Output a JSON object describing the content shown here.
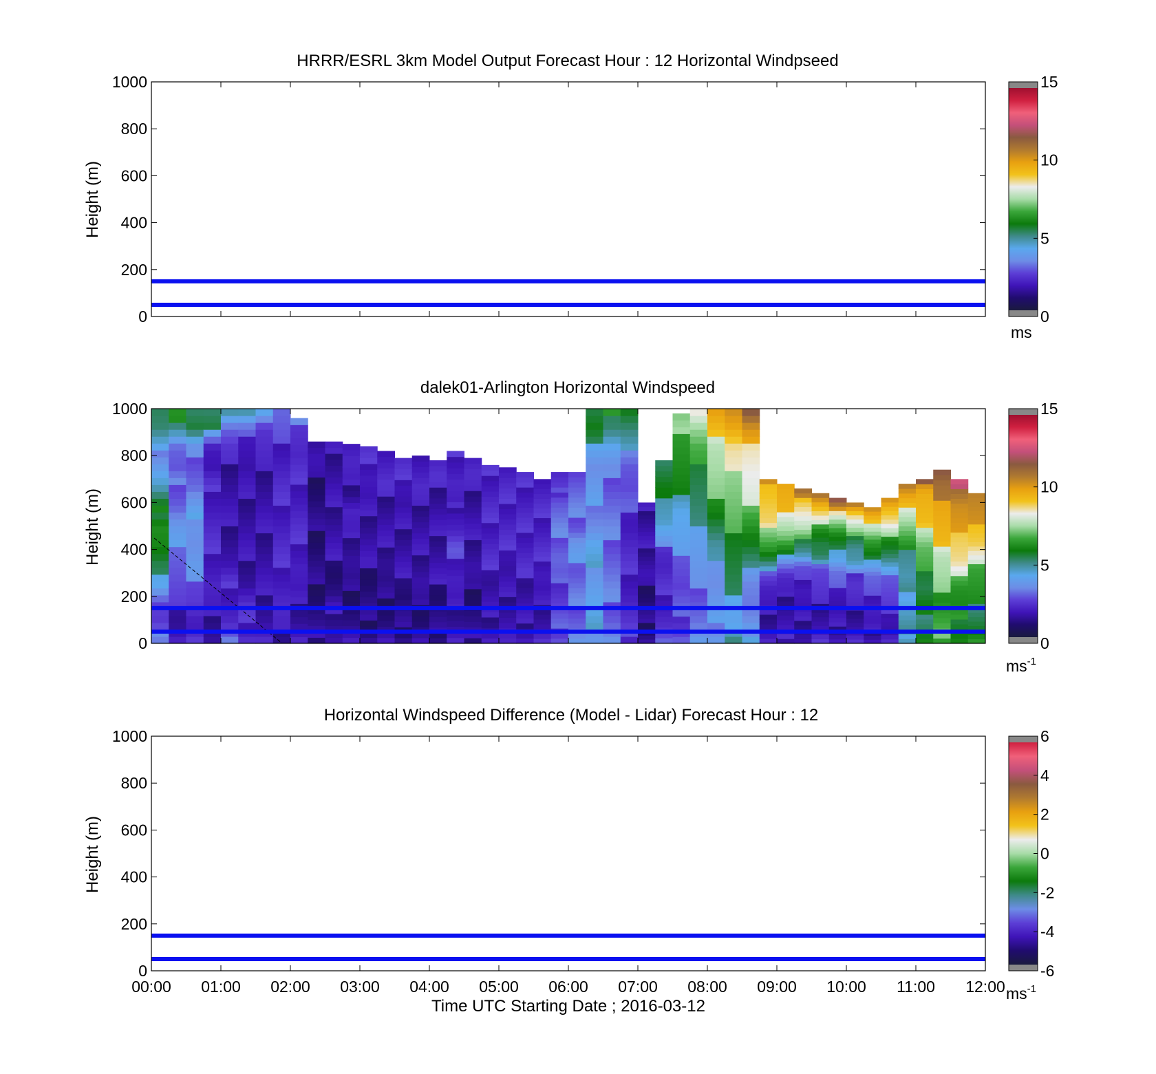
{
  "colors": {
    "guide_line": "#0a10f0",
    "axis": "#000000",
    "missing": "#888888",
    "speed_colormap": [
      "#1a1a3e",
      "#200c6e",
      "#3f14b8",
      "#5c3ed6",
      "#6d8de6",
      "#5aa8ee",
      "#3f8a8a",
      "#0c7a0c",
      "#3aa63a",
      "#a8dca8",
      "#ececec",
      "#f2c21a",
      "#e8a010",
      "#b07a30",
      "#8a5a40",
      "#c4507a",
      "#f0607a",
      "#d02040",
      "#a01030"
    ],
    "diff_colormap": [
      "#1a1a3e",
      "#200c6e",
      "#3f14b8",
      "#5c3ed6",
      "#6d8de6",
      "#3f8a8a",
      "#0c7a0c",
      "#3aa63a",
      "#a8dca8",
      "#ececec",
      "#f2c21a",
      "#e8a010",
      "#b07a30",
      "#8a5a40",
      "#c4507a",
      "#f0607a",
      "#d02040"
    ]
  },
  "chart_data": [
    {
      "type": "line",
      "title": "HRRR/ESRL 3km Model Output   Forecast Hour : 12 Horizontal Windpseed",
      "ylabel": "Height (m)",
      "ylim": [
        0,
        1000
      ],
      "yticks": [
        "0",
        "200",
        "400",
        "600",
        "800",
        "1000"
      ],
      "xlim": [
        "00:00",
        "12:00"
      ],
      "x_tick_count": 13,
      "series": [
        {
          "values": [
            150,
            150
          ]
        },
        {
          "values": [
            50,
            50
          ]
        }
      ],
      "colorbar": {
        "ticks": [
          "0",
          "5",
          "10",
          "15"
        ],
        "range": [
          0,
          15
        ],
        "unit": "ms",
        "unit_sup": ""
      }
    },
    {
      "type": "heatmap",
      "title": "dalek01-Arlington  Horizontal Windspeed",
      "ylabel": "Height (m)",
      "ylim": [
        0,
        1000
      ],
      "yticks": [
        "0",
        "200",
        "400",
        "600",
        "800",
        "1000"
      ],
      "xlim": [
        "00:00",
        "12:00"
      ],
      "x_tick_count": 13,
      "guide_lines_m": [
        150,
        50
      ],
      "colorbar": {
        "ticks": [
          "0",
          "5",
          "10",
          "15"
        ],
        "range": [
          0,
          15
        ],
        "unit": "ms",
        "unit_sup": "-1"
      },
      "columns": [
        {
          "t": "00:10",
          "top_m": 1000,
          "speeds": [
            4.0,
            2.0,
            2.5,
            4.5,
            5.0,
            6.0,
            6.5,
            5.5,
            4.5,
            4.0,
            3.5,
            5.0,
            5.5
          ]
        },
        {
          "t": "00:25",
          "top_m": 1000,
          "speeds": [
            2.0,
            1.5,
            2.0,
            2.5,
            3.0,
            3.5,
            3.5,
            3.0,
            3.0,
            2.5,
            3.0,
            5.5,
            6.0
          ]
        },
        {
          "t": "00:40",
          "top_m": 1000,
          "speeds": [
            2.0,
            1.5,
            2.5,
            3.0,
            3.5,
            3.5,
            4.0,
            3.5,
            3.0,
            3.0,
            3.0,
            5.5,
            5.5
          ]
        },
        {
          "t": "00:55",
          "top_m": 1000,
          "speeds": [
            1.5,
            1.5,
            1.5,
            2.0,
            2.0,
            2.0,
            2.0,
            2.0,
            2.0,
            1.5,
            2.0,
            5.0,
            5.0
          ]
        },
        {
          "t": "01:10",
          "top_m": 1000,
          "speeds": [
            3.0,
            2.0,
            2.0,
            2.0,
            1.5,
            1.5,
            1.5,
            1.5,
            1.5,
            1.5,
            2.0,
            3.0,
            5.5
          ]
        },
        {
          "t": "01:25",
          "top_m": 1000,
          "speeds": [
            2.5,
            2.0,
            2.0,
            1.5,
            1.5,
            1.5,
            1.5,
            1.5,
            1.5,
            1.5,
            2.0,
            2.5,
            5.0
          ]
        },
        {
          "t": "01:40",
          "top_m": 1000,
          "speeds": [
            2.0,
            1.5,
            1.5,
            1.5,
            1.5,
            1.5,
            1.5,
            1.5,
            1.5,
            1.5,
            2.0,
            2.5,
            5.0
          ]
        },
        {
          "t": "01:55",
          "top_m": 1000,
          "speeds": [
            1.5,
            1.5,
            2.0,
            2.0,
            2.0,
            2.0,
            2.0,
            2.0,
            2.0,
            2.0,
            2.0,
            2.5,
            3.0
          ]
        },
        {
          "t": "02:10",
          "top_m": 960,
          "speeds": [
            2.0,
            1.5,
            1.5,
            1.5,
            2.0,
            2.0,
            2.0,
            2.0,
            2.0,
            2.0,
            2.0,
            2.5,
            3.0
          ]
        },
        {
          "t": "02:25",
          "top_m": 860,
          "speeds": [
            1.5,
            1.0,
            1.0,
            1.0,
            1.0,
            1.0,
            1.0,
            1.0,
            1.0,
            1.0,
            1.0,
            1.5,
            1.5
          ]
        },
        {
          "t": "02:40",
          "top_m": 860,
          "speeds": [
            1.5,
            1.5,
            1.5,
            1.0,
            1.0,
            1.5,
            1.5,
            1.5,
            1.5,
            1.5,
            1.5,
            1.5,
            1.5
          ]
        },
        {
          "t": "02:55",
          "top_m": 850,
          "speeds": [
            1.5,
            1.0,
            1.0,
            1.0,
            1.0,
            1.5,
            1.5,
            1.5,
            2.0,
            1.5,
            1.5,
            2.0,
            2.0
          ]
        },
        {
          "t": "03:10",
          "top_m": 840,
          "speeds": [
            1.5,
            1.0,
            1.0,
            1.0,
            1.0,
            1.5,
            1.5,
            1.5,
            1.5,
            1.5,
            2.0,
            2.0,
            2.0
          ]
        },
        {
          "t": "03:25",
          "top_m": 820,
          "speeds": [
            1.5,
            1.0,
            1.0,
            1.0,
            1.0,
            1.5,
            1.5,
            1.5,
            1.5,
            1.5,
            2.0,
            2.0,
            2.0
          ]
        },
        {
          "t": "03:40",
          "top_m": 790,
          "speeds": [
            1.5,
            1.0,
            1.0,
            1.0,
            1.5,
            1.5,
            1.5,
            1.5,
            1.5,
            1.5,
            2.0,
            2.0,
            2.0
          ]
        },
        {
          "t": "03:55",
          "top_m": 800,
          "speeds": [
            1.5,
            1.0,
            1.0,
            1.0,
            1.5,
            1.5,
            1.5,
            1.5,
            1.5,
            1.5,
            2.0,
            2.0,
            2.0
          ]
        },
        {
          "t": "04:10",
          "top_m": 780,
          "speeds": [
            1.5,
            1.0,
            1.0,
            1.0,
            1.5,
            1.5,
            1.5,
            1.5,
            1.5,
            1.5,
            1.5,
            2.0,
            2.0
          ]
        },
        {
          "t": "04:25",
          "top_m": 820,
          "speeds": [
            2.0,
            1.5,
            1.5,
            1.5,
            2.0,
            2.0,
            2.5,
            2.0,
            2.0,
            1.5,
            2.0,
            2.0,
            2.0
          ]
        },
        {
          "t": "04:40",
          "top_m": 790,
          "speeds": [
            1.5,
            1.0,
            1.0,
            1.0,
            1.0,
            1.5,
            1.5,
            1.5,
            1.5,
            1.5,
            1.5,
            2.0,
            2.0
          ]
        },
        {
          "t": "04:55",
          "top_m": 760,
          "speeds": [
            2.0,
            1.5,
            1.5,
            1.5,
            1.5,
            2.0,
            2.0,
            2.0,
            2.0,
            2.0,
            2.0,
            2.0,
            2.0
          ]
        },
        {
          "t": "05:10",
          "top_m": 750,
          "speeds": [
            1.5,
            1.5,
            1.5,
            1.5,
            1.5,
            1.5,
            2.0,
            2.0,
            2.0,
            2.0,
            2.0,
            2.0,
            2.0
          ]
        },
        {
          "t": "05:25",
          "top_m": 730,
          "speeds": [
            2.0,
            1.5,
            1.5,
            1.5,
            1.5,
            2.0,
            2.0,
            2.0,
            2.0,
            2.0,
            2.0,
            2.0,
            2.0
          ]
        },
        {
          "t": "05:40",
          "top_m": 700,
          "speeds": [
            2.0,
            1.5,
            1.5,
            1.5,
            1.5,
            2.0,
            2.0,
            2.0,
            2.0,
            2.0,
            2.0,
            2.0,
            2.0
          ]
        },
        {
          "t": "05:55",
          "top_m": 730,
          "speeds": [
            3.0,
            2.5,
            2.5,
            2.5,
            2.5,
            2.5,
            3.0,
            3.0,
            3.0,
            3.0,
            3.0,
            2.0,
            2.0
          ]
        },
        {
          "t": "06:10",
          "top_m": 730,
          "speeds": [
            3.5,
            3.0,
            3.0,
            3.0,
            3.0,
            3.0,
            3.5,
            3.5,
            3.0,
            3.0,
            3.0,
            3.0,
            3.0
          ]
        },
        {
          "t": "06:25",
          "top_m": 1000,
          "speeds": [
            4.0,
            4.0,
            4.0,
            4.0,
            4.0,
            4.0,
            3.5,
            3.5,
            3.5,
            3.5,
            4.5,
            5.5,
            5.5
          ]
        },
        {
          "t": "06:40",
          "top_m": 1000,
          "speeds": [
            3.5,
            3.0,
            3.0,
            3.0,
            3.0,
            3.0,
            3.0,
            3.0,
            3.0,
            3.0,
            4.0,
            5.5,
            6.0
          ]
        },
        {
          "t": "06:55",
          "top_m": 1000,
          "speeds": [
            2.5,
            2.0,
            2.0,
            2.0,
            2.0,
            2.0,
            2.0,
            2.5,
            2.5,
            3.0,
            4.0,
            5.0,
            6.0
          ]
        },
        {
          "t": "07:10",
          "top_m": 600,
          "speeds": [
            1.5,
            1.0,
            1.0,
            1.0,
            1.0,
            1.0,
            1.5,
            1.5,
            1.5,
            1.5,
            1.5,
            1.5,
            1.5
          ]
        },
        {
          "t": "07:25",
          "top_m": 780,
          "speeds": [
            2.5,
            2.0,
            2.0,
            2.0,
            2.0,
            2.0,
            2.5,
            3.5,
            4.5,
            5.0,
            5.5,
            5.5,
            5.5
          ]
        },
        {
          "t": "07:40",
          "top_m": 980,
          "speeds": [
            3.0,
            2.5,
            2.5,
            2.5,
            3.0,
            3.5,
            4.0,
            4.5,
            5.5,
            6.0,
            6.5,
            7.0,
            7.0
          ]
        },
        {
          "t": "07:55",
          "top_m": 1000,
          "speeds": [
            3.5,
            3.0,
            3.0,
            3.0,
            3.5,
            4.0,
            4.5,
            5.0,
            5.5,
            6.0,
            6.5,
            7.5,
            9.0
          ]
        },
        {
          "t": "08:10",
          "top_m": 1000,
          "speeds": [
            4.0,
            3.5,
            3.5,
            3.5,
            4.0,
            4.5,
            5.5,
            6.5,
            7.0,
            7.5,
            8.0,
            9.0,
            10.0
          ]
        },
        {
          "t": "08:25",
          "top_m": 1000,
          "speeds": [
            5.0,
            4.0,
            4.5,
            5.0,
            5.5,
            6.0,
            6.5,
            7.0,
            7.5,
            8.0,
            8.5,
            10.0,
            11.0
          ]
        },
        {
          "t": "08:40",
          "top_m": 1000,
          "speeds": [
            5.0,
            3.0,
            3.0,
            3.5,
            4.5,
            5.5,
            6.5,
            7.5,
            8.0,
            8.5,
            9.0,
            10.0,
            12.0
          ]
        },
        {
          "t": "08:55",
          "top_m": 700,
          "speeds": [
            2.0,
            1.5,
            1.5,
            1.5,
            2.0,
            3.0,
            5.0,
            6.5,
            7.5,
            8.5,
            9.0,
            9.5,
            10.0
          ]
        },
        {
          "t": "09:10",
          "top_m": 680,
          "speeds": [
            2.0,
            1.5,
            1.5,
            1.5,
            1.5,
            2.0,
            3.5,
            5.5,
            7.0,
            8.0,
            9.0,
            9.5,
            10.0
          ]
        },
        {
          "t": "09:25",
          "top_m": 660,
          "speeds": [
            1.5,
            1.5,
            1.5,
            1.5,
            2.0,
            2.0,
            2.5,
            5.0,
            6.0,
            7.5,
            8.5,
            9.5,
            11.0
          ]
        },
        {
          "t": "09:40",
          "top_m": 640,
          "speeds": [
            2.0,
            1.5,
            1.5,
            1.5,
            2.0,
            2.5,
            3.0,
            5.0,
            5.5,
            6.5,
            8.0,
            9.5,
            11.5
          ]
        },
        {
          "t": "09:55",
          "top_m": 620,
          "speeds": [
            2.0,
            1.5,
            1.5,
            1.5,
            2.0,
            2.5,
            3.0,
            4.5,
            5.0,
            6.0,
            7.5,
            9.5,
            12.0
          ]
        },
        {
          "t": "10:10",
          "top_m": 600,
          "speeds": [
            2.0,
            1.5,
            1.5,
            1.5,
            2.0,
            2.5,
            2.5,
            4.5,
            5.0,
            6.0,
            7.5,
            9.0,
            11.5
          ]
        },
        {
          "t": "10:25",
          "top_m": 580,
          "speeds": [
            2.0,
            1.5,
            1.5,
            2.0,
            2.0,
            2.5,
            3.0,
            4.5,
            5.5,
            6.5,
            8.0,
            9.0,
            10.5
          ]
        },
        {
          "t": "10:40",
          "top_m": 620,
          "speeds": [
            2.0,
            1.5,
            2.0,
            2.0,
            2.5,
            3.0,
            3.5,
            5.0,
            6.0,
            7.0,
            8.5,
            9.5,
            11.0
          ]
        },
        {
          "t": "10:55",
          "top_m": 680,
          "speeds": [
            5.0,
            4.5,
            4.5,
            4.5,
            4.5,
            4.5,
            5.0,
            5.5,
            6.5,
            7.5,
            8.5,
            9.5,
            11.0
          ]
        },
        {
          "t": "11:10",
          "top_m": 700,
          "speeds": [
            6.0,
            5.5,
            5.5,
            5.5,
            5.5,
            6.0,
            6.5,
            7.0,
            8.0,
            9.0,
            9.5,
            10.0,
            11.5
          ]
        },
        {
          "t": "11:25",
          "top_m": 740,
          "speeds": [
            7.0,
            6.5,
            6.5,
            6.5,
            7.0,
            7.5,
            8.0,
            9.0,
            9.5,
            10.0,
            10.5,
            11.0,
            12.0
          ]
        },
        {
          "t": "11:40",
          "top_m": 700,
          "speeds": [
            6.0,
            6.0,
            6.0,
            6.0,
            6.5,
            7.5,
            8.5,
            9.0,
            9.5,
            10.0,
            10.5,
            11.5,
            12.5
          ]
        },
        {
          "t": "11:55",
          "top_m": 640,
          "speeds": [
            6.0,
            5.5,
            5.5,
            5.5,
            6.0,
            6.5,
            7.0,
            8.0,
            9.0,
            9.5,
            10.0,
            10.5,
            11.0
          ]
        }
      ]
    },
    {
      "type": "line",
      "title": "Horizontal Windspeed Difference (Model - Lidar) Forecast Hour : 12",
      "ylabel": "Height (m)",
      "xlabel": "Time UTC  Starting Date ; 2016-03-12",
      "ylim": [
        0,
        1000
      ],
      "yticks": [
        "0",
        "200",
        "400",
        "600",
        "800",
        "1000"
      ],
      "xticks": [
        "00:00",
        "01:00",
        "02:00",
        "03:00",
        "04:00",
        "05:00",
        "06:00",
        "07:00",
        "08:00",
        "09:00",
        "10:00",
        "11:00",
        "12:00"
      ],
      "series": [
        {
          "values": [
            150,
            150
          ]
        },
        {
          "values": [
            50,
            50
          ]
        }
      ],
      "colorbar": {
        "ticks": [
          "-6",
          "-4",
          "-2",
          "0",
          "2",
          "4",
          "6"
        ],
        "range": [
          -6,
          6
        ],
        "unit": "ms",
        "unit_sup": "-1"
      }
    }
  ]
}
